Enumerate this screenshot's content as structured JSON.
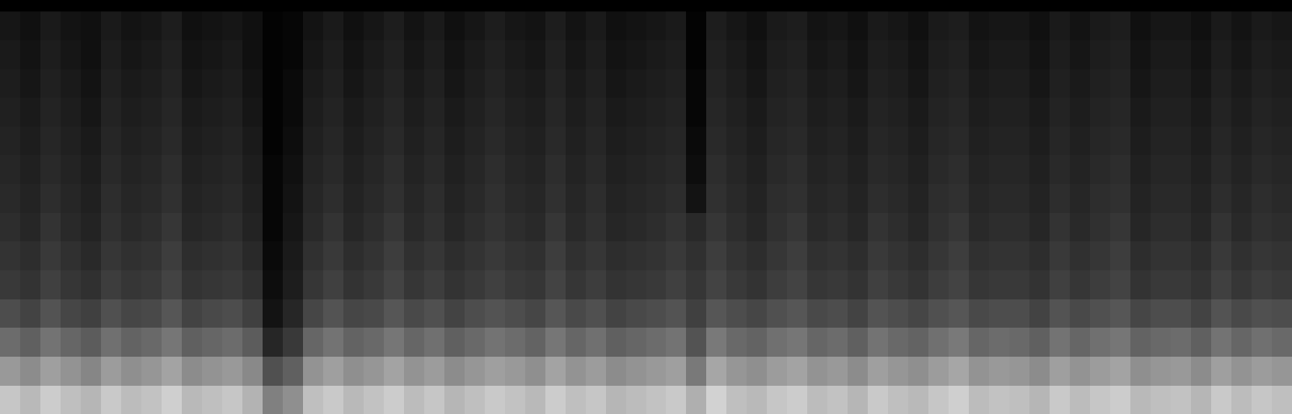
{
  "chart_data": {
    "type": "heatmap",
    "tick_labels": false,
    "grid": false,
    "xlim": [
      -0.5,
      63.5
    ],
    "ylim": [
      -0.5,
      13.9
    ],
    "zlim": [
      0,
      80
    ],
    "z": [
      [
        62,
        58,
        64,
        60,
        57,
        63,
        59,
        61,
        65,
        58,
        60,
        62,
        56,
        40,
        45,
        60,
        63,
        58,
        61,
        64,
        59,
        62,
        57,
        60,
        63,
        61,
        58,
        64,
        60,
        62,
        57,
        59,
        61,
        63,
        55,
        66,
        60,
        58,
        62,
        64,
        59,
        61,
        57,
        63,
        60,
        58,
        62,
        65,
        59,
        61,
        60,
        57,
        63,
        59,
        62,
        64,
        58,
        60,
        61,
        57,
        63,
        59,
        62,
        60
      ],
      [
        48,
        44,
        50,
        46,
        42,
        49,
        45,
        47,
        51,
        44,
        46,
        48,
        43,
        25,
        30,
        46,
        50,
        45,
        47,
        51,
        46,
        49,
        44,
        47,
        50,
        48,
        45,
        51,
        46,
        49,
        44,
        46,
        48,
        50,
        38,
        52,
        47,
        45,
        49,
        51,
        46,
        48,
        44,
        50,
        47,
        45,
        49,
        52,
        46,
        48,
        47,
        44,
        50,
        46,
        49,
        51,
        45,
        47,
        48,
        44,
        50,
        46,
        49,
        47
      ],
      [
        34,
        30,
        36,
        32,
        29,
        35,
        31,
        33,
        37,
        30,
        32,
        34,
        29,
        12,
        18,
        32,
        36,
        31,
        33,
        37,
        32,
        35,
        30,
        33,
        36,
        34,
        31,
        37,
        32,
        35,
        30,
        32,
        34,
        36,
        26,
        38,
        33,
        31,
        35,
        37,
        32,
        34,
        30,
        36,
        33,
        31,
        35,
        38,
        32,
        34,
        33,
        30,
        36,
        32,
        35,
        37,
        31,
        33,
        34,
        30,
        36,
        32,
        35,
        33
      ],
      [
        24,
        21,
        26,
        22,
        20,
        25,
        22,
        23,
        27,
        21,
        23,
        24,
        20,
        6,
        12,
        22,
        26,
        22,
        23,
        27,
        23,
        25,
        21,
        24,
        26,
        24,
        22,
        27,
        23,
        25,
        21,
        23,
        24,
        26,
        20,
        27,
        24,
        22,
        25,
        27,
        23,
        24,
        21,
        26,
        24,
        22,
        25,
        27,
        23,
        24,
        24,
        21,
        26,
        23,
        25,
        27,
        22,
        24,
        24,
        21,
        26,
        23,
        25,
        24
      ],
      [
        18,
        16,
        20,
        17,
        15,
        19,
        17,
        18,
        21,
        16,
        17,
        18,
        15,
        4,
        9,
        17,
        20,
        16,
        18,
        21,
        17,
        19,
        16,
        18,
        20,
        18,
        17,
        21,
        17,
        19,
        16,
        17,
        18,
        20,
        17,
        21,
        18,
        16,
        19,
        21,
        17,
        18,
        16,
        20,
        18,
        16,
        19,
        21,
        17,
        18,
        18,
        16,
        20,
        17,
        19,
        21,
        16,
        18,
        18,
        16,
        20,
        17,
        19,
        18
      ],
      [
        16,
        14,
        18,
        15,
        13,
        17,
        15,
        16,
        19,
        14,
        15,
        16,
        13,
        3,
        8,
        15,
        18,
        14,
        16,
        19,
        15,
        17,
        14,
        16,
        18,
        16,
        15,
        19,
        15,
        17,
        14,
        15,
        16,
        18,
        15,
        19,
        16,
        14,
        17,
        19,
        15,
        16,
        14,
        18,
        16,
        14,
        17,
        19,
        15,
        16,
        16,
        14,
        18,
        15,
        17,
        19,
        14,
        16,
        16,
        14,
        18,
        15,
        17,
        16
      ],
      [
        14,
        12,
        16,
        13,
        11,
        15,
        13,
        14,
        17,
        12,
        13,
        14,
        11,
        2,
        7,
        13,
        16,
        12,
        14,
        17,
        13,
        15,
        12,
        14,
        16,
        14,
        13,
        17,
        13,
        15,
        12,
        13,
        14,
        16,
        13,
        17,
        14,
        12,
        15,
        17,
        13,
        14,
        12,
        16,
        14,
        12,
        15,
        17,
        13,
        14,
        14,
        12,
        16,
        13,
        15,
        17,
        12,
        14,
        14,
        12,
        16,
        13,
        15,
        14
      ],
      [
        13,
        11,
        14,
        12,
        10,
        14,
        12,
        13,
        15,
        11,
        12,
        13,
        10,
        2,
        6,
        12,
        14,
        11,
        13,
        15,
        12,
        14,
        11,
        13,
        15,
        13,
        12,
        15,
        12,
        14,
        11,
        12,
        13,
        14,
        6,
        15,
        13,
        11,
        14,
        15,
        12,
        13,
        11,
        14,
        13,
        11,
        14,
        15,
        12,
        13,
        13,
        11,
        14,
        12,
        14,
        15,
        11,
        13,
        13,
        11,
        14,
        12,
        14,
        13
      ],
      [
        12,
        10,
        13,
        11,
        9,
        13,
        11,
        12,
        14,
        10,
        11,
        12,
        9,
        2,
        5,
        11,
        13,
        10,
        12,
        14,
        11,
        13,
        10,
        12,
        14,
        12,
        11,
        14,
        11,
        13,
        10,
        11,
        12,
        13,
        4,
        14,
        12,
        10,
        13,
        14,
        11,
        12,
        10,
        13,
        12,
        10,
        13,
        14,
        11,
        12,
        12,
        10,
        13,
        11,
        13,
        14,
        10,
        12,
        12,
        10,
        13,
        11,
        13,
        12
      ],
      [
        11,
        9,
        12,
        10,
        8,
        12,
        10,
        11,
        13,
        9,
        10,
        11,
        8,
        1,
        4,
        10,
        12,
        9,
        11,
        13,
        10,
        12,
        9,
        11,
        13,
        11,
        10,
        13,
        10,
        12,
        9,
        10,
        11,
        12,
        3,
        13,
        11,
        9,
        12,
        13,
        10,
        11,
        9,
        12,
        11,
        9,
        12,
        13,
        10,
        11,
        11,
        9,
        12,
        10,
        12,
        13,
        9,
        11,
        11,
        9,
        12,
        10,
        12,
        11
      ],
      [
        10,
        8,
        11,
        9,
        7,
        11,
        9,
        10,
        12,
        8,
        9,
        10,
        7,
        1,
        3,
        9,
        11,
        8,
        10,
        12,
        9,
        11,
        8,
        10,
        12,
        10,
        9,
        12,
        9,
        11,
        8,
        9,
        10,
        11,
        2,
        12,
        10,
        8,
        11,
        12,
        9,
        10,
        8,
        11,
        10,
        8,
        11,
        12,
        9,
        10,
        10,
        8,
        11,
        9,
        11,
        12,
        8,
        10,
        10,
        8,
        11,
        9,
        11,
        10
      ],
      [
        9,
        7,
        10,
        8,
        6,
        10,
        8,
        9,
        11,
        7,
        8,
        9,
        6,
        1,
        3,
        8,
        10,
        7,
        9,
        11,
        8,
        10,
        7,
        9,
        11,
        9,
        8,
        11,
        8,
        10,
        7,
        8,
        9,
        10,
        2,
        11,
        9,
        7,
        10,
        11,
        8,
        9,
        7,
        10,
        9,
        7,
        10,
        11,
        8,
        9,
        9,
        7,
        10,
        8,
        10,
        11,
        7,
        9,
        9,
        7,
        10,
        8,
        10,
        9
      ],
      [
        8,
        6,
        9,
        7,
        5,
        9,
        7,
        8,
        10,
        6,
        7,
        8,
        5,
        1,
        2,
        7,
        9,
        6,
        8,
        10,
        7,
        9,
        6,
        8,
        10,
        8,
        7,
        10,
        7,
        9,
        6,
        7,
        8,
        9,
        1,
        10,
        8,
        6,
        9,
        10,
        7,
        8,
        6,
        9,
        8,
        6,
        9,
        10,
        7,
        8,
        8,
        6,
        9,
        7,
        9,
        10,
        6,
        8,
        8,
        6,
        9,
        7,
        9,
        8
      ],
      [
        7,
        5,
        8,
        6,
        5,
        8,
        6,
        7,
        9,
        5,
        6,
        7,
        5,
        1,
        2,
        6,
        8,
        5,
        7,
        9,
        6,
        8,
        5,
        7,
        9,
        7,
        6,
        9,
        6,
        8,
        5,
        6,
        7,
        8,
        1,
        9,
        7,
        5,
        8,
        9,
        6,
        7,
        5,
        8,
        7,
        5,
        8,
        9,
        6,
        7,
        7,
        5,
        8,
        6,
        8,
        9,
        5,
        7,
        7,
        5,
        8,
        6,
        8,
        7
      ]
    ]
  }
}
